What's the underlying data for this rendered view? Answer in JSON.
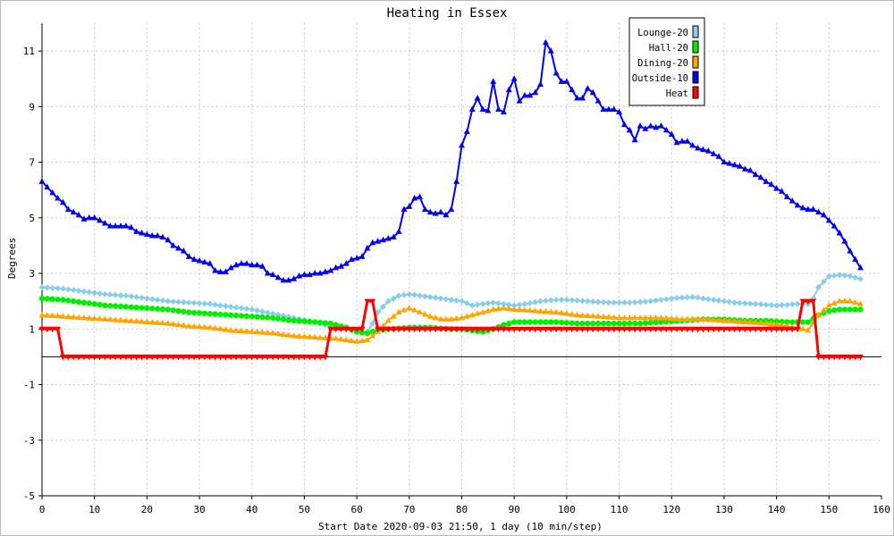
{
  "chart_data": {
    "type": "line",
    "title": "Heating in Essex",
    "xlabel": "Start Date 2020-09-03 21:50, 1 day (10 min/step)",
    "ylabel": "Degrees",
    "xlim": [
      0,
      160
    ],
    "ylim": [
      -5,
      12
    ],
    "x_ticks": [
      0,
      10,
      20,
      30,
      40,
      50,
      60,
      70,
      80,
      90,
      100,
      110,
      120,
      130,
      140,
      150,
      160
    ],
    "y_ticks": [
      -5,
      -3,
      -1,
      1,
      3,
      5,
      7,
      9,
      11
    ],
    "grid": true,
    "legend_position": "top-right",
    "series": [
      {
        "name": "Lounge-20",
        "color": "#87ceeb",
        "marker": "diamond",
        "x": [
          0,
          4,
          8,
          12,
          16,
          20,
          24,
          28,
          32,
          36,
          40,
          44,
          48,
          52,
          55,
          58,
          61,
          62,
          63,
          64,
          66,
          68,
          70,
          72,
          74,
          76,
          78,
          80,
          82,
          84,
          86,
          88,
          90,
          92,
          95,
          98,
          100,
          104,
          108,
          112,
          116,
          120,
          124,
          128,
          132,
          136,
          140,
          144,
          146,
          147,
          148,
          150,
          152,
          154,
          156
        ],
        "values": [
          2.5,
          2.45,
          2.35,
          2.25,
          2.2,
          2.1,
          2.0,
          1.95,
          1.9,
          1.8,
          1.7,
          1.55,
          1.4,
          1.25,
          1.1,
          1.0,
          0.85,
          0.9,
          1.2,
          1.6,
          2.0,
          2.2,
          2.25,
          2.2,
          2.15,
          2.1,
          2.05,
          2.0,
          1.85,
          1.9,
          1.95,
          1.9,
          1.85,
          1.9,
          2.0,
          2.05,
          2.05,
          2.0,
          1.95,
          1.95,
          2.0,
          2.1,
          2.15,
          2.05,
          1.95,
          1.9,
          1.85,
          1.9,
          1.9,
          2.1,
          2.5,
          2.9,
          2.95,
          2.9,
          2.8
        ]
      },
      {
        "name": "Hall-20",
        "color": "#00ee00",
        "marker": "circle",
        "x": [
          0,
          4,
          8,
          12,
          16,
          20,
          24,
          28,
          32,
          36,
          40,
          44,
          48,
          52,
          55,
          58,
          60,
          62,
          64,
          66,
          70,
          74,
          78,
          80,
          82,
          84,
          86,
          88,
          90,
          94,
          98,
          102,
          106,
          110,
          114,
          118,
          122,
          126,
          130,
          134,
          138,
          142,
          146,
          148,
          150,
          152,
          154,
          156
        ],
        "values": [
          2.1,
          2.05,
          1.95,
          1.85,
          1.8,
          1.75,
          1.7,
          1.6,
          1.55,
          1.5,
          1.45,
          1.4,
          1.3,
          1.25,
          1.2,
          1.05,
          0.9,
          0.85,
          0.95,
          1.0,
          1.05,
          1.05,
          1.0,
          1.0,
          0.95,
          0.9,
          1.0,
          1.15,
          1.25,
          1.25,
          1.25,
          1.2,
          1.2,
          1.2,
          1.2,
          1.25,
          1.3,
          1.35,
          1.35,
          1.3,
          1.3,
          1.25,
          1.25,
          1.5,
          1.65,
          1.7,
          1.7,
          1.7
        ]
      },
      {
        "name": "Dining-20",
        "color": "#ffa500",
        "marker": "triangle-up",
        "x": [
          0,
          4,
          8,
          12,
          16,
          20,
          24,
          28,
          32,
          36,
          40,
          44,
          48,
          52,
          56,
          60,
          62,
          64,
          66,
          68,
          70,
          72,
          74,
          76,
          78,
          80,
          82,
          84,
          86,
          88,
          90,
          94,
          98,
          102,
          106,
          110,
          114,
          118,
          122,
          126,
          130,
          134,
          138,
          142,
          145,
          146,
          148,
          150,
          152,
          154,
          156
        ],
        "values": [
          1.5,
          1.45,
          1.4,
          1.35,
          1.3,
          1.25,
          1.2,
          1.1,
          1.05,
          0.95,
          0.9,
          0.85,
          0.75,
          0.7,
          0.65,
          0.55,
          0.6,
          0.9,
          1.3,
          1.6,
          1.75,
          1.6,
          1.45,
          1.35,
          1.35,
          1.4,
          1.5,
          1.6,
          1.7,
          1.75,
          1.7,
          1.65,
          1.6,
          1.5,
          1.45,
          1.4,
          1.4,
          1.4,
          1.35,
          1.35,
          1.3,
          1.25,
          1.2,
          1.1,
          1.0,
          0.95,
          1.5,
          1.85,
          2.0,
          2.0,
          1.9
        ]
      },
      {
        "name": "Outside-10",
        "color": "#0000ee",
        "marker": "triangle-up",
        "x": [
          0,
          1,
          2,
          3,
          4,
          5,
          6,
          7,
          8,
          9,
          10,
          11,
          12,
          13,
          14,
          15,
          16,
          17,
          18,
          19,
          20,
          21,
          22,
          23,
          24,
          25,
          26,
          27,
          28,
          29,
          30,
          31,
          32,
          33,
          34,
          35,
          36,
          37,
          38,
          39,
          40,
          41,
          42,
          43,
          44,
          45,
          46,
          47,
          48,
          49,
          50,
          51,
          52,
          53,
          54,
          55,
          56,
          57,
          58,
          59,
          60,
          61,
          62,
          63,
          64,
          65,
          66,
          67,
          68,
          69,
          70,
          71,
          72,
          73,
          74,
          75,
          76,
          77,
          78,
          79,
          80,
          81,
          82,
          83,
          84,
          85,
          86,
          87,
          88,
          89,
          90,
          91,
          92,
          93,
          94,
          95,
          96,
          97,
          98,
          99,
          100,
          101,
          102,
          103,
          104,
          105,
          106,
          107,
          108,
          109,
          110,
          111,
          112,
          113,
          114,
          115,
          116,
          117,
          118,
          119,
          120,
          121,
          122,
          123,
          124,
          125,
          126,
          127,
          128,
          129,
          130,
          131,
          132,
          133,
          134,
          135,
          136,
          137,
          138,
          139,
          140,
          141,
          142,
          143,
          144,
          145,
          146,
          147,
          148,
          149,
          150,
          151,
          152,
          153,
          154,
          155,
          156
        ],
        "values": [
          6.3,
          6.1,
          5.9,
          5.7,
          5.55,
          5.3,
          5.2,
          5.1,
          4.95,
          5.0,
          5.0,
          4.9,
          4.8,
          4.7,
          4.7,
          4.7,
          4.7,
          4.65,
          4.5,
          4.45,
          4.4,
          4.35,
          4.35,
          4.3,
          4.2,
          4.0,
          3.9,
          3.8,
          3.6,
          3.5,
          3.45,
          3.4,
          3.35,
          3.1,
          3.05,
          3.05,
          3.2,
          3.3,
          3.35,
          3.35,
          3.3,
          3.3,
          3.25,
          3.0,
          2.95,
          2.85,
          2.75,
          2.75,
          2.8,
          2.9,
          2.95,
          2.95,
          3.0,
          3.0,
          3.05,
          3.1,
          3.2,
          3.25,
          3.35,
          3.5,
          3.55,
          3.6,
          3.9,
          4.1,
          4.15,
          4.2,
          4.25,
          4.3,
          4.5,
          5.3,
          5.4,
          5.7,
          5.75,
          5.3,
          5.2,
          5.15,
          5.2,
          5.1,
          5.3,
          6.3,
          7.6,
          8.1,
          8.9,
          9.3,
          8.9,
          8.85,
          9.9,
          8.9,
          8.8,
          9.6,
          10.0,
          9.2,
          9.4,
          9.4,
          9.5,
          9.8,
          11.3,
          11.0,
          10.2,
          9.9,
          9.9,
          9.6,
          9.3,
          9.3,
          9.65,
          9.5,
          9.2,
          8.9,
          8.9,
          8.9,
          8.8,
          8.35,
          8.15,
          7.8,
          8.3,
          8.2,
          8.3,
          8.25,
          8.3,
          8.15,
          8.0,
          7.7,
          7.75,
          7.75,
          7.6,
          7.5,
          7.45,
          7.4,
          7.3,
          7.2,
          7.0,
          6.95,
          6.9,
          6.85,
          6.75,
          6.7,
          6.55,
          6.45,
          6.3,
          6.2,
          6.05,
          5.95,
          5.75,
          5.6,
          5.45,
          5.35,
          5.3,
          5.3,
          5.2,
          5.1,
          4.9,
          4.7,
          4.45,
          4.15,
          3.8,
          3.5,
          3.2
        ]
      },
      {
        "name": "Heat",
        "color": "#ff0000",
        "marker": "triangle-down",
        "x": [
          0,
          1,
          2,
          3,
          4,
          54,
          55,
          61,
          62,
          63,
          64,
          144,
          145,
          146,
          147,
          148,
          149,
          156
        ],
        "values": [
          1,
          1,
          1,
          1,
          0,
          0,
          1,
          1,
          2,
          2,
          1,
          1,
          2,
          2,
          2,
          0,
          0,
          0
        ]
      }
    ]
  }
}
